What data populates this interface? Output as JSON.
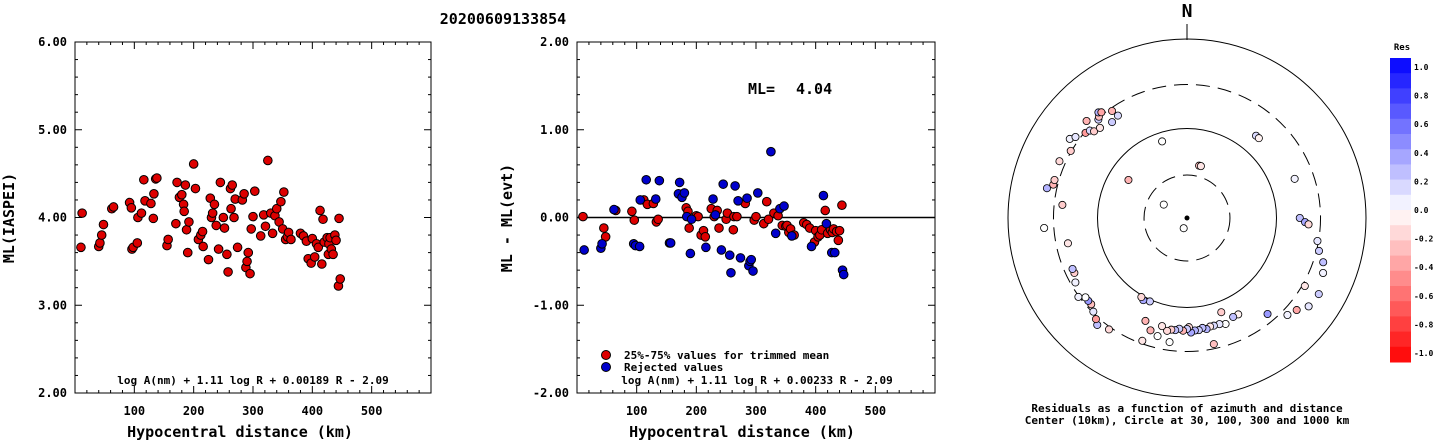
{
  "event_id": "20200609133854",
  "chart_data": [
    {
      "type": "scatter",
      "xlabel": "Hypocentral distance (km)",
      "ylabel": "ML(IASPEI)",
      "xlim": [
        0,
        600
      ],
      "ylim": [
        2.0,
        6.0
      ],
      "x_ticks": [
        "100",
        "200",
        "300",
        "400",
        "500"
      ],
      "y_ticks": [
        "2.00",
        "3.00",
        "4.00",
        "5.00",
        "6.00"
      ],
      "formula": "log A(nm) + 1.11 log R + 0.00189 R - 2.09",
      "point_color": "#dd0000",
      "points": [
        [
          12,
          4.05
        ],
        [
          10,
          3.66
        ],
        [
          40,
          3.67
        ],
        [
          42,
          3.71
        ],
        [
          45,
          3.8
        ],
        [
          48,
          3.92
        ],
        [
          62,
          4.1
        ],
        [
          65,
          4.12
        ],
        [
          92,
          4.17
        ],
        [
          95,
          4.11
        ],
        [
          96,
          3.64
        ],
        [
          98,
          3.66
        ],
        [
          105,
          3.71
        ],
        [
          106,
          4.0
        ],
        [
          112,
          4.05
        ],
        [
          116,
          4.43
        ],
        [
          118,
          4.19
        ],
        [
          128,
          4.16
        ],
        [
          132,
          3.99
        ],
        [
          133,
          4.27
        ],
        [
          136,
          4.44
        ],
        [
          138,
          4.45
        ],
        [
          155,
          3.68
        ],
        [
          157,
          3.75
        ],
        [
          170,
          3.93
        ],
        [
          172,
          4.4
        ],
        [
          176,
          4.23
        ],
        [
          180,
          4.26
        ],
        [
          183,
          4.15
        ],
        [
          184,
          4.07
        ],
        [
          186,
          4.37
        ],
        [
          188,
          3.86
        ],
        [
          190,
          3.6
        ],
        [
          192,
          3.95
        ],
        [
          200,
          4.61
        ],
        [
          203,
          4.33
        ],
        [
          208,
          3.75
        ],
        [
          212,
          3.8
        ],
        [
          215,
          3.84
        ],
        [
          216,
          3.67
        ],
        [
          225,
          3.52
        ],
        [
          228,
          4.22
        ],
        [
          230,
          4.0
        ],
        [
          232,
          4.05
        ],
        [
          235,
          4.15
        ],
        [
          238,
          3.91
        ],
        [
          242,
          3.64
        ],
        [
          245,
          4.4
        ],
        [
          250,
          4.0
        ],
        [
          252,
          3.88
        ],
        [
          256,
          3.58
        ],
        [
          258,
          3.38
        ],
        [
          262,
          4.33
        ],
        [
          263,
          4.1
        ],
        [
          265,
          4.37
        ],
        [
          268,
          4.0
        ],
        [
          270,
          4.21
        ],
        [
          274,
          3.66
        ],
        [
          282,
          4.2
        ],
        [
          285,
          4.27
        ],
        [
          288,
          3.43
        ],
        [
          290,
          3.5
        ],
        [
          292,
          3.6
        ],
        [
          295,
          3.36
        ],
        [
          297,
          3.87
        ],
        [
          300,
          4.01
        ],
        [
          303,
          4.3
        ],
        [
          313,
          3.79
        ],
        [
          318,
          4.03
        ],
        [
          321,
          3.9
        ],
        [
          325,
          4.65
        ],
        [
          330,
          4.05
        ],
        [
          333,
          3.82
        ],
        [
          337,
          4.02
        ],
        [
          340,
          4.1
        ],
        [
          344,
          3.95
        ],
        [
          347,
          4.18
        ],
        [
          350,
          3.87
        ],
        [
          352,
          4.29
        ],
        [
          355,
          3.75
        ],
        [
          358,
          3.78
        ],
        [
          360,
          3.83
        ],
        [
          364,
          3.75
        ],
        [
          380,
          3.82
        ],
        [
          385,
          3.79
        ],
        [
          390,
          3.73
        ],
        [
          393,
          3.53
        ],
        [
          398,
          3.48
        ],
        [
          400,
          3.76
        ],
        [
          404,
          3.55
        ],
        [
          407,
          3.7
        ],
        [
          410,
          3.66
        ],
        [
          413,
          4.08
        ],
        [
          416,
          3.47
        ],
        [
          418,
          3.98
        ],
        [
          420,
          3.72
        ],
        [
          425,
          3.77
        ],
        [
          427,
          3.58
        ],
        [
          428,
          3.7
        ],
        [
          430,
          3.77
        ],
        [
          432,
          3.64
        ],
        [
          435,
          3.58
        ],
        [
          438,
          3.8
        ],
        [
          440,
          3.74
        ],
        [
          444,
          3.22
        ],
        [
          445,
          3.99
        ],
        [
          447,
          3.3
        ]
      ]
    },
    {
      "type": "scatter",
      "xlabel": "Hypocentral distance (km)",
      "ylabel": "ML - ML(evt)",
      "xlim": [
        0,
        600
      ],
      "ylim": [
        -2.0,
        2.0
      ],
      "x_ticks": [
        "100",
        "200",
        "300",
        "400",
        "500"
      ],
      "y_ticks": [
        "-2.00",
        "-1.00",
        "0.00",
        "1.00",
        "2.00"
      ],
      "ml_label": "ML=",
      "ml_value": "4.04",
      "formula": "log A(nm) + 1.11 log R + 0.00233 R - 2.09",
      "legend": [
        {
          "label": "25%-75% values for trimmed mean",
          "color": "#dd0000"
        },
        {
          "label": "Rejected values",
          "color": "#0000cc"
        }
      ],
      "accepted": [
        [
          10,
          0.01
        ],
        [
          45,
          -0.12
        ],
        [
          48,
          -0.22
        ],
        [
          65,
          0.08
        ],
        [
          92,
          0.07
        ],
        [
          96,
          -0.03
        ],
        [
          112,
          0.2
        ],
        [
          118,
          0.15
        ],
        [
          128,
          0.16
        ],
        [
          133,
          -0.05
        ],
        [
          136,
          -0.02
        ],
        [
          183,
          0.11
        ],
        [
          186,
          0.07
        ],
        [
          188,
          -0.12
        ],
        [
          200,
          0.02
        ],
        [
          203,
          0.01
        ],
        [
          208,
          -0.2
        ],
        [
          212,
          -0.15
        ],
        [
          215,
          -0.22
        ],
        [
          225,
          0.1
        ],
        [
          230,
          0.01
        ],
        [
          235,
          0.08
        ],
        [
          238,
          -0.12
        ],
        [
          250,
          -0.02
        ],
        [
          252,
          0.05
        ],
        [
          262,
          -0.14
        ],
        [
          263,
          0.01
        ],
        [
          268,
          0.01
        ],
        [
          282,
          0.16
        ],
        [
          297,
          -0.03
        ],
        [
          300,
          0.01
        ],
        [
          313,
          -0.07
        ],
        [
          318,
          0.18
        ],
        [
          321,
          -0.02
        ],
        [
          330,
          0.05
        ],
        [
          337,
          0.02
        ],
        [
          344,
          -0.09
        ],
        [
          350,
          -0.1
        ],
        [
          352,
          -0.09
        ],
        [
          355,
          -0.17
        ],
        [
          358,
          -0.13
        ],
        [
          364,
          -0.2
        ],
        [
          380,
          -0.06
        ],
        [
          385,
          -0.08
        ],
        [
          390,
          -0.12
        ],
        [
          398,
          -0.28
        ],
        [
          400,
          -0.15
        ],
        [
          404,
          -0.22
        ],
        [
          407,
          -0.2
        ],
        [
          410,
          -0.14
        ],
        [
          416,
          0.08
        ],
        [
          420,
          -0.18
        ],
        [
          425,
          -0.14
        ],
        [
          428,
          -0.17
        ],
        [
          430,
          -0.13
        ],
        [
          435,
          -0.16
        ],
        [
          438,
          -0.26
        ],
        [
          440,
          -0.15
        ],
        [
          444,
          0.14
        ]
      ],
      "rejected": [
        [
          12,
          -0.37
        ],
        [
          40,
          -0.35
        ],
        [
          42,
          -0.3
        ],
        [
          62,
          0.09
        ],
        [
          95,
          -0.3
        ],
        [
          98,
          -0.32
        ],
        [
          105,
          -0.33
        ],
        [
          106,
          0.2
        ],
        [
          116,
          0.43
        ],
        [
          132,
          0.21
        ],
        [
          138,
          0.42
        ],
        [
          155,
          -0.29
        ],
        [
          157,
          -0.29
        ],
        [
          170,
          0.27
        ],
        [
          172,
          0.4
        ],
        [
          176,
          0.23
        ],
        [
          180,
          0.28
        ],
        [
          184,
          0.01
        ],
        [
          190,
          -0.41
        ],
        [
          192,
          -0.02
        ],
        [
          216,
          -0.34
        ],
        [
          228,
          0.21
        ],
        [
          232,
          0.03
        ],
        [
          242,
          -0.37
        ],
        [
          245,
          0.38
        ],
        [
          256,
          -0.43
        ],
        [
          258,
          -0.63
        ],
        [
          265,
          0.36
        ],
        [
          270,
          0.19
        ],
        [
          274,
          -0.46
        ],
        [
          285,
          0.22
        ],
        [
          288,
          -0.55
        ],
        [
          290,
          -0.5
        ],
        [
          292,
          -0.48
        ],
        [
          295,
          -0.61
        ],
        [
          303,
          0.28
        ],
        [
          325,
          0.75
        ],
        [
          333,
          -0.18
        ],
        [
          340,
          0.1
        ],
        [
          347,
          0.13
        ],
        [
          360,
          -0.21
        ],
        [
          393,
          -0.33
        ],
        [
          413,
          0.25
        ],
        [
          418,
          -0.07
        ],
        [
          427,
          -0.4
        ],
        [
          432,
          -0.4
        ],
        [
          445,
          -0.6
        ],
        [
          447,
          -0.65
        ]
      ]
    },
    {
      "type": "polar_scatter",
      "north_label": "N",
      "caption_line1": "Residuals as a function of azimuth and distance",
      "caption_line2": "Center (10km), Circle at 30, 100, 300 and 1000 km",
      "colorbar_title": "Res",
      "colorbar_ticks": [
        "1.0",
        "0.8",
        "0.6",
        "0.4",
        "0.2",
        "0.0",
        "-0.2",
        "-0.4",
        "-0.6",
        "-0.8",
        "-1.0"
      ],
      "rings_km": [
        30,
        100,
        300,
        1000
      ],
      "points": [
        [
          13,
          0.3,
          -0.25
        ],
        [
          15,
          0.3,
          -0.1
        ],
        [
          40,
          0.6,
          0.15
        ],
        [
          42,
          0.6,
          -0.05
        ],
        [
          90,
          0.63,
          0.25
        ],
        [
          92,
          0.66,
          0.35
        ],
        [
          93,
          0.68,
          -0.15
        ],
        [
          70,
          0.64,
          0.05
        ],
        [
          100,
          0.74,
          0.1
        ],
        [
          104,
          0.76,
          0.2
        ],
        [
          108,
          0.8,
          0.25
        ],
        [
          112,
          0.82,
          0.05
        ],
        [
          120,
          0.85,
          0.2
        ],
        [
          120,
          0.76,
          -0.1
        ],
        [
          126,
          0.84,
          0.1
        ],
        [
          130,
          0.8,
          -0.35
        ],
        [
          134,
          0.78,
          0.05
        ],
        [
          140,
          0.7,
          0.4
        ],
        [
          152,
          0.61,
          -0.05
        ],
        [
          155,
          0.61,
          0.25
        ],
        [
          160,
          0.63,
          0.0
        ],
        [
          160,
          0.56,
          -0.2
        ],
        [
          163,
          0.62,
          0.1
        ],
        [
          166,
          0.62,
          0.15
        ],
        [
          168,
          0.62,
          -0.1
        ],
        [
          168,
          0.72,
          -0.25
        ],
        [
          170,
          0.63,
          0.3
        ],
        [
          172,
          0.62,
          0.25
        ],
        [
          174,
          0.63,
          0.2
        ],
        [
          176,
          0.63,
          0.3
        ],
        [
          178,
          0.64,
          0.35
        ],
        [
          179,
          0.61,
          -0.15
        ],
        [
          180,
          0.62,
          0.2
        ],
        [
          182,
          0.63,
          -0.3
        ],
        [
          184,
          0.62,
          0.2
        ],
        [
          186,
          0.63,
          0.25
        ],
        [
          188,
          0.63,
          -0.2
        ],
        [
          188,
          0.7,
          0.0
        ],
        [
          190,
          0.64,
          -0.15
        ],
        [
          193,
          0.62,
          -0.1
        ],
        [
          194,
          0.68,
          0.0
        ],
        [
          198,
          0.66,
          -0.3
        ],
        [
          200,
          0.73,
          -0.1
        ],
        [
          202,
          0.62,
          -0.3
        ],
        [
          204,
          0.51,
          0.2
        ],
        [
          208,
          0.52,
          0.35
        ],
        [
          210,
          0.51,
          -0.15
        ],
        [
          215,
          0.76,
          -0.15
        ],
        [
          220,
          0.78,
          0.25
        ],
        [
          222,
          0.76,
          -0.4
        ],
        [
          225,
          0.74,
          0.1
        ],
        [
          228,
          0.72,
          -0.25
        ],
        [
          230,
          0.72,
          0.4
        ],
        [
          232,
          0.72,
          0.0
        ],
        [
          234,
          0.75,
          0.05
        ],
        [
          240,
          0.72,
          0.05
        ],
        [
          244,
          0.7,
          -0.2
        ],
        [
          246,
          0.7,
          0.25
        ],
        [
          258,
          0.68,
          -0.1
        ],
        [
          266,
          0.8,
          0.0
        ],
        [
          276,
          0.7,
          -0.2
        ],
        [
          282,
          0.8,
          0.3
        ],
        [
          284,
          0.77,
          -0.3
        ],
        [
          286,
          0.77,
          -0.2
        ],
        [
          294,
          0.78,
          -0.15
        ],
        [
          300,
          0.75,
          -0.2
        ],
        [
          304,
          0.79,
          0.05
        ],
        [
          306,
          0.77,
          0.1
        ],
        [
          310,
          0.74,
          -0.4
        ],
        [
          312,
          0.73,
          0.15
        ],
        [
          313,
          0.71,
          -0.2
        ],
        [
          314,
          0.78,
          -0.3
        ],
        [
          316,
          0.7,
          -0.1
        ],
        [
          318,
          0.74,
          0.2
        ],
        [
          319,
          0.75,
          -0.25
        ],
        [
          320,
          0.77,
          0.3
        ],
        [
          321,
          0.76,
          -0.35
        ],
        [
          322,
          0.68,
          0.2
        ],
        [
          325,
          0.73,
          -0.3
        ],
        [
          326,
          0.69,
          0.15
        ],
        [
          342,
          0.45,
          0.0
        ],
        [
          303,
          0.39,
          -0.3
        ],
        [
          300,
          0.15,
          0.0
        ],
        [
          198,
          0.06,
          0.0
        ]
      ]
    }
  ]
}
